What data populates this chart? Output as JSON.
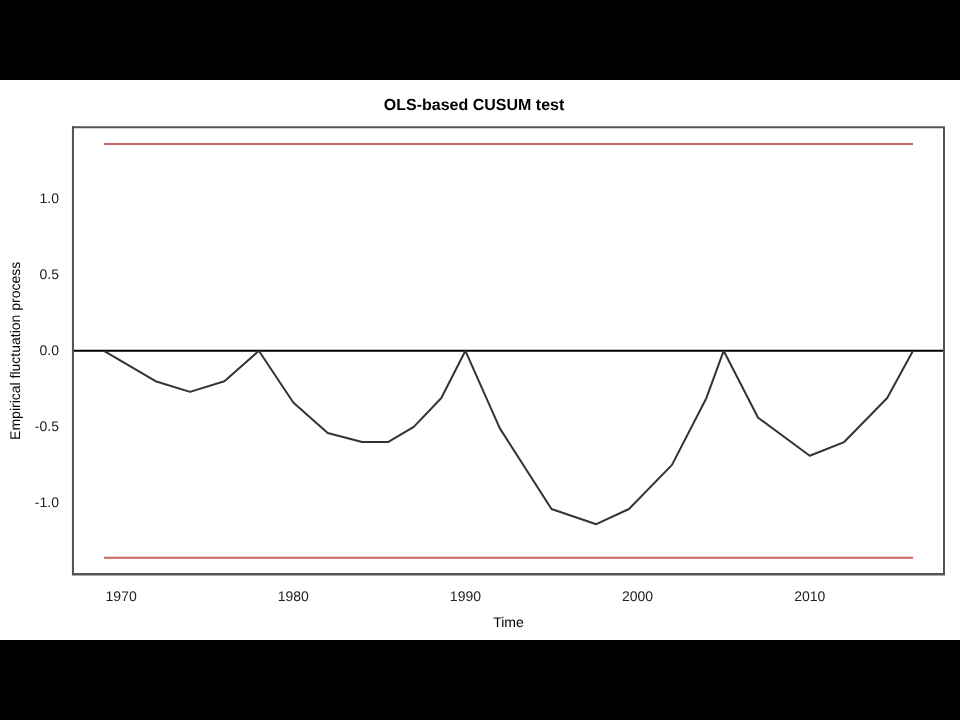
{
  "chart_data": {
    "type": "line",
    "title": "OLS-based CUSUM test",
    "xlabel": "Time",
    "ylabel": "Empirical fluctuation process",
    "x": [
      1969,
      1972,
      1974,
      1976,
      1978,
      1980,
      1982,
      1984,
      1985.5,
      1987,
      1988.6,
      1990,
      1992,
      1995,
      1997.6,
      1999.5,
      2002,
      2004,
      2005,
      2007,
      2010,
      2012,
      2014.5,
      2016
    ],
    "series": [
      {
        "color": "#333333",
        "values": [
          0,
          -0.2,
          -0.27,
          -0.2,
          0,
          -0.34,
          -0.54,
          -0.6,
          -0.6,
          -0.5,
          -0.31,
          0,
          -0.51,
          -1.04,
          -1.14,
          -1.04,
          -0.75,
          -0.31,
          0,
          -0.44,
          -0.69,
          -0.6,
          -0.31,
          0
        ]
      }
    ],
    "xlim": [
      1967.2,
      2017.8
    ],
    "xticks": [
      1970,
      1980,
      1990,
      2000,
      2010
    ],
    "ylim": [
      -1.47,
      1.47
    ],
    "yticks": [
      {
        "value": -1,
        "label": "-1.0"
      },
      {
        "value": -0.5,
        "label": "-0.5"
      },
      {
        "value": 0,
        "label": "0.0"
      },
      {
        "value": 0.5,
        "label": "0.5"
      },
      {
        "value": 1,
        "label": "1.0"
      }
    ],
    "ref_lines": [
      {
        "axis": "y",
        "value": 1.36,
        "color": "#c86464"
      },
      {
        "axis": "y",
        "value": 0,
        "color": "#000000"
      },
      {
        "axis": "y",
        "value": -1.36,
        "color": "#c86464"
      }
    ],
    "grid": false,
    "legend": false,
    "marker": "none",
    "line_style": "solid"
  }
}
